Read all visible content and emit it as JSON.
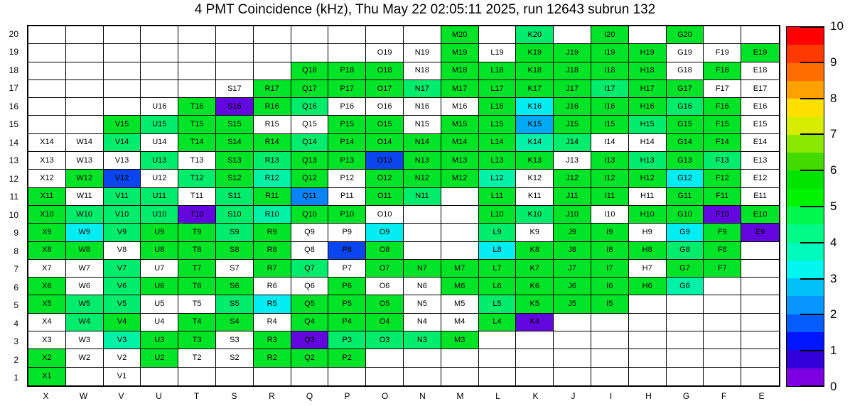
{
  "title": "4 PMT Coincidence (kHz), Thu May 22 02:05:11 2025, run 12643 subrun 132",
  "chart_data": {
    "type": "heatmap",
    "title": "4 PMT Coincidence (kHz), Thu May 22 02:05:11 2025, run 12643 subrun 132",
    "run": "12643",
    "subrun": "132",
    "timestamp": "Thu May 22 02:05:11 2025",
    "x_categories": [
      "X",
      "W",
      "V",
      "U",
      "T",
      "S",
      "R",
      "Q",
      "P",
      "O",
      "N",
      "M",
      "L",
      "K",
      "J",
      "I",
      "H",
      "G",
      "F",
      "E"
    ],
    "y_categories": [
      "20",
      "19",
      "18",
      "17",
      "16",
      "15",
      "14",
      "13",
      "12",
      "11",
      "10",
      "9",
      "8",
      "7",
      "6",
      "5",
      "4",
      "3",
      "2",
      "1"
    ],
    "colorbar": {
      "min": 0,
      "max": 10,
      "ticks": [
        10,
        9,
        8,
        7,
        6,
        5,
        4,
        3,
        2,
        1,
        0
      ],
      "bands_top_to_bottom": [
        "#ff0000",
        "#ff3a00",
        "#ff6c00",
        "#ffa100",
        "#ffe000",
        "#d6ec00",
        "#8ae800",
        "#43da00",
        "#00e400",
        "#00f400",
        "#00f84e",
        "#00fb86",
        "#00fabb",
        "#00f6ee",
        "#00c2f8",
        "#0795ff",
        "#045cfa",
        "#0016ff",
        "#3100d8",
        "#7c00e2"
      ]
    },
    "palette": {
      "g": "#00e428",
      "sg": "#00ec6c",
      "tq": "#00f2a6",
      "cy": "#00eef2",
      "sky": "#00aaf5",
      "db": "#0784fa",
      "bl": "#0a45f0",
      "vi": "#6307e0",
      "w": "#ffffff"
    },
    "class_value_estimates_kHz": {
      "g": 5.3,
      "sg": 4.6,
      "tq": 3.9,
      "cy": 3.4,
      "sky": 2.9,
      "db": 2.4,
      "bl": 1.7,
      "vi": 0.4,
      "w": null
    },
    "cells_by_row_top_to_bottom": [
      [
        null,
        null,
        null,
        null,
        null,
        null,
        null,
        null,
        null,
        null,
        null,
        [
          "M20",
          "g"
        ],
        null,
        [
          "K20",
          "sg"
        ],
        null,
        [
          "I20",
          "g"
        ],
        null,
        [
          "G20",
          "g"
        ],
        null,
        null
      ],
      [
        null,
        null,
        null,
        null,
        null,
        null,
        null,
        null,
        null,
        [
          "O19",
          "w"
        ],
        [
          "N19",
          "w"
        ],
        [
          "M19",
          "g"
        ],
        [
          "L19",
          "w"
        ],
        [
          "K19",
          "g"
        ],
        [
          "J19",
          "g"
        ],
        [
          "I19",
          "g"
        ],
        [
          "H19",
          "g"
        ],
        [
          "G19",
          "w"
        ],
        [
          "F19",
          "w"
        ],
        [
          "E19",
          "g"
        ]
      ],
      [
        null,
        null,
        null,
        null,
        null,
        null,
        null,
        [
          "Q18",
          "g"
        ],
        [
          "P18",
          "g"
        ],
        [
          "O18",
          "g"
        ],
        [
          "N18",
          "w"
        ],
        [
          "M18",
          "g"
        ],
        [
          "L18",
          "g"
        ],
        [
          "K18",
          "g"
        ],
        [
          "J18",
          "g"
        ],
        [
          "I18",
          "g"
        ],
        [
          "H18",
          "g"
        ],
        [
          "G18",
          "w"
        ],
        [
          "F18",
          "g"
        ],
        [
          "E18",
          "w"
        ]
      ],
      [
        null,
        null,
        null,
        null,
        null,
        [
          "S17",
          "w"
        ],
        [
          "R17",
          "g"
        ],
        [
          "Q17",
          "g"
        ],
        [
          "P17",
          "g"
        ],
        [
          "O17",
          "g"
        ],
        [
          "N17",
          "sg"
        ],
        [
          "M17",
          "g"
        ],
        [
          "L17",
          "g"
        ],
        [
          "K17",
          "g"
        ],
        [
          "J17",
          "g"
        ],
        [
          "I17",
          "sg"
        ],
        [
          "H17",
          "g"
        ],
        [
          "G17",
          "g"
        ],
        [
          "F17",
          "w"
        ],
        [
          "E17",
          "w"
        ]
      ],
      [
        null,
        null,
        null,
        [
          "U16",
          "w"
        ],
        [
          "T16",
          "g"
        ],
        [
          "S16",
          "vi"
        ],
        [
          "R16",
          "g"
        ],
        [
          "Q16",
          "sg"
        ],
        [
          "P16",
          "w"
        ],
        [
          "O16",
          "w"
        ],
        [
          "N16",
          "w"
        ],
        [
          "M16",
          "w"
        ],
        [
          "L16",
          "g"
        ],
        [
          "K16",
          "cy"
        ],
        [
          "J16",
          "g"
        ],
        [
          "I16",
          "g"
        ],
        [
          "H16",
          "g"
        ],
        [
          "G16",
          "sg"
        ],
        [
          "F16",
          "g"
        ],
        [
          "E16",
          "w"
        ]
      ],
      [
        null,
        null,
        [
          "V15",
          "g"
        ],
        [
          "U15",
          "sg"
        ],
        [
          "T15",
          "g"
        ],
        [
          "S15",
          "g"
        ],
        [
          "R15",
          "w"
        ],
        [
          "Q15",
          "w"
        ],
        [
          "P15",
          "g"
        ],
        [
          "O15",
          "g"
        ],
        [
          "N15",
          "w"
        ],
        [
          "M15",
          "g"
        ],
        [
          "L15",
          "g"
        ],
        [
          "K15",
          "sky"
        ],
        [
          "J15",
          "g"
        ],
        [
          "I15",
          "g"
        ],
        [
          "H15",
          "sg"
        ],
        [
          "G15",
          "g"
        ],
        [
          "F15",
          "g"
        ],
        [
          "E15",
          "w"
        ]
      ],
      [
        [
          "X14",
          "w"
        ],
        [
          "W14",
          "w"
        ],
        [
          "V14",
          "sg"
        ],
        [
          "U14",
          "w"
        ],
        [
          "T14",
          "g"
        ],
        [
          "S14",
          "g"
        ],
        [
          "R14",
          "g"
        ],
        [
          "Q14",
          "sg"
        ],
        [
          "P14",
          "g"
        ],
        [
          "O14",
          "g"
        ],
        [
          "N14",
          "g"
        ],
        [
          "M14",
          "g"
        ],
        [
          "L14",
          "g"
        ],
        [
          "K14",
          "tq"
        ],
        [
          "J14",
          "sg"
        ],
        [
          "I14",
          "w"
        ],
        [
          "H14",
          "w"
        ],
        [
          "G14",
          "g"
        ],
        [
          "F14",
          "g"
        ],
        [
          "E14",
          "w"
        ]
      ],
      [
        [
          "X13",
          "w"
        ],
        [
          "W13",
          "w"
        ],
        [
          "V13",
          "w"
        ],
        [
          "U13",
          "sg"
        ],
        [
          "T13",
          "w"
        ],
        [
          "S13",
          "g"
        ],
        [
          "R13",
          "sg"
        ],
        [
          "Q13",
          "g"
        ],
        [
          "P13",
          "g"
        ],
        [
          "O13",
          "bl"
        ],
        [
          "N13",
          "g"
        ],
        [
          "M13",
          "g"
        ],
        [
          "L13",
          "g"
        ],
        [
          "K13",
          "g"
        ],
        [
          "J13",
          "w"
        ],
        [
          "I13",
          "g"
        ],
        [
          "H13",
          "sg"
        ],
        [
          "G13",
          "g"
        ],
        [
          "F13",
          "sg"
        ],
        [
          "E13",
          "w"
        ]
      ],
      [
        [
          "X12",
          "w"
        ],
        [
          "W12",
          "g"
        ],
        [
          "V12",
          "bl"
        ],
        [
          "U12",
          "w"
        ],
        [
          "T12",
          "sg"
        ],
        [
          "S12",
          "g"
        ],
        [
          "R12",
          "tq"
        ],
        [
          "Q12",
          "g"
        ],
        [
          "P12",
          "w"
        ],
        [
          "O12",
          "g"
        ],
        [
          "N12",
          "g"
        ],
        [
          "M12",
          "g"
        ],
        [
          "L12",
          "tq"
        ],
        [
          "K12",
          "w"
        ],
        [
          "J12",
          "g"
        ],
        [
          "I12",
          "g"
        ],
        [
          "H12",
          "g"
        ],
        [
          "G12",
          "cy"
        ],
        [
          "F12",
          "g"
        ],
        [
          "E12",
          "w"
        ]
      ],
      [
        [
          "X11",
          "g"
        ],
        [
          "W11",
          "w"
        ],
        [
          "V11",
          "sg"
        ],
        [
          "U11",
          "sg"
        ],
        [
          "T11",
          "w"
        ],
        [
          "S11",
          "sg"
        ],
        [
          "R11",
          "g"
        ],
        [
          "Q11",
          "db"
        ],
        [
          "P11",
          "w"
        ],
        [
          "O11",
          "g"
        ],
        [
          "N11",
          "sg"
        ],
        null,
        [
          "L11",
          "g"
        ],
        [
          "K11",
          "w"
        ],
        [
          "J11",
          "g"
        ],
        [
          "I11",
          "g"
        ],
        [
          "H11",
          "w"
        ],
        [
          "G11",
          "g"
        ],
        [
          "F11",
          "g"
        ],
        [
          "E11",
          "w"
        ]
      ],
      [
        [
          "X10",
          "g"
        ],
        [
          "W10",
          "sg"
        ],
        [
          "V10",
          "sg"
        ],
        [
          "U10",
          "sg"
        ],
        [
          "T10",
          "vi"
        ],
        [
          "S10",
          "sg"
        ],
        [
          "R10",
          "tq"
        ],
        [
          "Q10",
          "g"
        ],
        [
          "P10",
          "g"
        ],
        [
          "O10",
          "w"
        ],
        null,
        null,
        [
          "L10",
          "g"
        ],
        [
          "K10",
          "sg"
        ],
        [
          "J10",
          "g"
        ],
        [
          "I10",
          "w"
        ],
        [
          "H10",
          "g"
        ],
        [
          "G10",
          "g"
        ],
        [
          "F10",
          "vi"
        ],
        [
          "E10",
          "g"
        ]
      ],
      [
        [
          "X9",
          "g"
        ],
        [
          "W9",
          "cy"
        ],
        [
          "V9",
          "sg"
        ],
        [
          "U9",
          "g"
        ],
        [
          "T9",
          "g"
        ],
        [
          "S9",
          "sg"
        ],
        [
          "R9",
          "g"
        ],
        [
          "Q9",
          "w"
        ],
        [
          "P9",
          "w"
        ],
        [
          "O9",
          "cy"
        ],
        null,
        null,
        [
          "L9",
          "sg"
        ],
        [
          "K9",
          "w"
        ],
        [
          "J9",
          "g"
        ],
        [
          "I9",
          "g"
        ],
        [
          "H9",
          "w"
        ],
        [
          "G9",
          "cy"
        ],
        [
          "F9",
          "g"
        ],
        [
          "E9",
          "vi"
        ]
      ],
      [
        [
          "X8",
          "g"
        ],
        [
          "W8",
          "g"
        ],
        [
          "V8",
          "w"
        ],
        [
          "U8",
          "g"
        ],
        [
          "T8",
          "g"
        ],
        [
          "S8",
          "g"
        ],
        [
          "R8",
          "g"
        ],
        [
          "Q8",
          "w"
        ],
        [
          "P8",
          "bl"
        ],
        [
          "O8",
          "g"
        ],
        null,
        null,
        [
          "L8",
          "cy"
        ],
        [
          "K8",
          "g"
        ],
        [
          "J8",
          "g"
        ],
        [
          "I8",
          "g"
        ],
        [
          "H8",
          "g"
        ],
        [
          "G8",
          "sg"
        ],
        [
          "F8",
          "g"
        ],
        null
      ],
      [
        [
          "X7",
          "w"
        ],
        [
          "W7",
          "w"
        ],
        [
          "V7",
          "sg"
        ],
        [
          "U7",
          "w"
        ],
        [
          "T7",
          "g"
        ],
        [
          "S7",
          "w"
        ],
        [
          "R7",
          "g"
        ],
        [
          "Q7",
          "sg"
        ],
        [
          "P7",
          "w"
        ],
        [
          "O7",
          "g"
        ],
        [
          "N7",
          "g"
        ],
        [
          "M7",
          "g"
        ],
        [
          "L7",
          "g"
        ],
        [
          "K7",
          "g"
        ],
        [
          "J7",
          "g"
        ],
        [
          "I7",
          "g"
        ],
        [
          "H7",
          "w"
        ],
        [
          "G7",
          "g"
        ],
        [
          "F7",
          "g"
        ],
        null
      ],
      [
        [
          "X6",
          "g"
        ],
        [
          "W6",
          "w"
        ],
        [
          "V6",
          "sg"
        ],
        [
          "U6",
          "g"
        ],
        [
          "T6",
          "g"
        ],
        [
          "S6",
          "g"
        ],
        [
          "R6",
          "w"
        ],
        [
          "Q6",
          "w"
        ],
        [
          "P6",
          "g"
        ],
        [
          "O6",
          "w"
        ],
        [
          "N6",
          "w"
        ],
        [
          "M6",
          "g"
        ],
        [
          "L6",
          "g"
        ],
        [
          "K6",
          "g"
        ],
        [
          "J6",
          "g"
        ],
        [
          "I6",
          "g"
        ],
        [
          "H6",
          "g"
        ],
        [
          "G6",
          "tq"
        ],
        null,
        null
      ],
      [
        [
          "X5",
          "g"
        ],
        [
          "W5",
          "sg"
        ],
        [
          "V5",
          "sg"
        ],
        [
          "U5",
          "w"
        ],
        [
          "T5",
          "w"
        ],
        [
          "S5",
          "sg"
        ],
        [
          "R5",
          "cy"
        ],
        [
          "Q5",
          "g"
        ],
        [
          "P5",
          "g"
        ],
        [
          "O5",
          "g"
        ],
        [
          "N5",
          "w"
        ],
        [
          "M5",
          "w"
        ],
        [
          "L5",
          "sg"
        ],
        [
          "K5",
          "g"
        ],
        [
          "J5",
          "g"
        ],
        [
          "I5",
          "g"
        ],
        null,
        null,
        null,
        null
      ],
      [
        [
          "X4",
          "w"
        ],
        [
          "W4",
          "sg"
        ],
        [
          "V4",
          "g"
        ],
        [
          "U4",
          "w"
        ],
        [
          "T4",
          "g"
        ],
        [
          "S4",
          "g"
        ],
        [
          "R4",
          "w"
        ],
        [
          "Q4",
          "g"
        ],
        [
          "P4",
          "g"
        ],
        [
          "O4",
          "g"
        ],
        [
          "N4",
          "w"
        ],
        [
          "M4",
          "w"
        ],
        [
          "L4",
          "g"
        ],
        [
          "K4",
          "vi"
        ],
        null,
        null,
        null,
        null,
        null,
        null
      ],
      [
        [
          "X3",
          "w"
        ],
        [
          "W3",
          "w"
        ],
        [
          "V3",
          "tq"
        ],
        [
          "U3",
          "g"
        ],
        [
          "T3",
          "g"
        ],
        [
          "S3",
          "w"
        ],
        [
          "R3",
          "g"
        ],
        [
          "Q3",
          "vi"
        ],
        [
          "P3",
          "sg"
        ],
        [
          "O3",
          "sg"
        ],
        [
          "N3",
          "sg"
        ],
        [
          "M3",
          "g"
        ],
        null,
        null,
        null,
        null,
        null,
        null,
        null,
        null
      ],
      [
        [
          "X2",
          "g"
        ],
        [
          "W2",
          "w"
        ],
        [
          "V2",
          "w"
        ],
        [
          "U2",
          "g"
        ],
        [
          "T2",
          "w"
        ],
        [
          "S2",
          "w"
        ],
        [
          "R2",
          "g"
        ],
        [
          "Q2",
          "g"
        ],
        [
          "P2",
          "g"
        ],
        null,
        null,
        null,
        null,
        null,
        null,
        null,
        null,
        null,
        null,
        null
      ],
      [
        [
          "X1",
          "g"
        ],
        null,
        [
          "V1",
          "w"
        ],
        null,
        null,
        null,
        null,
        null,
        null,
        null,
        null,
        null,
        null,
        null,
        null,
        null,
        null,
        null,
        null,
        null
      ]
    ]
  }
}
